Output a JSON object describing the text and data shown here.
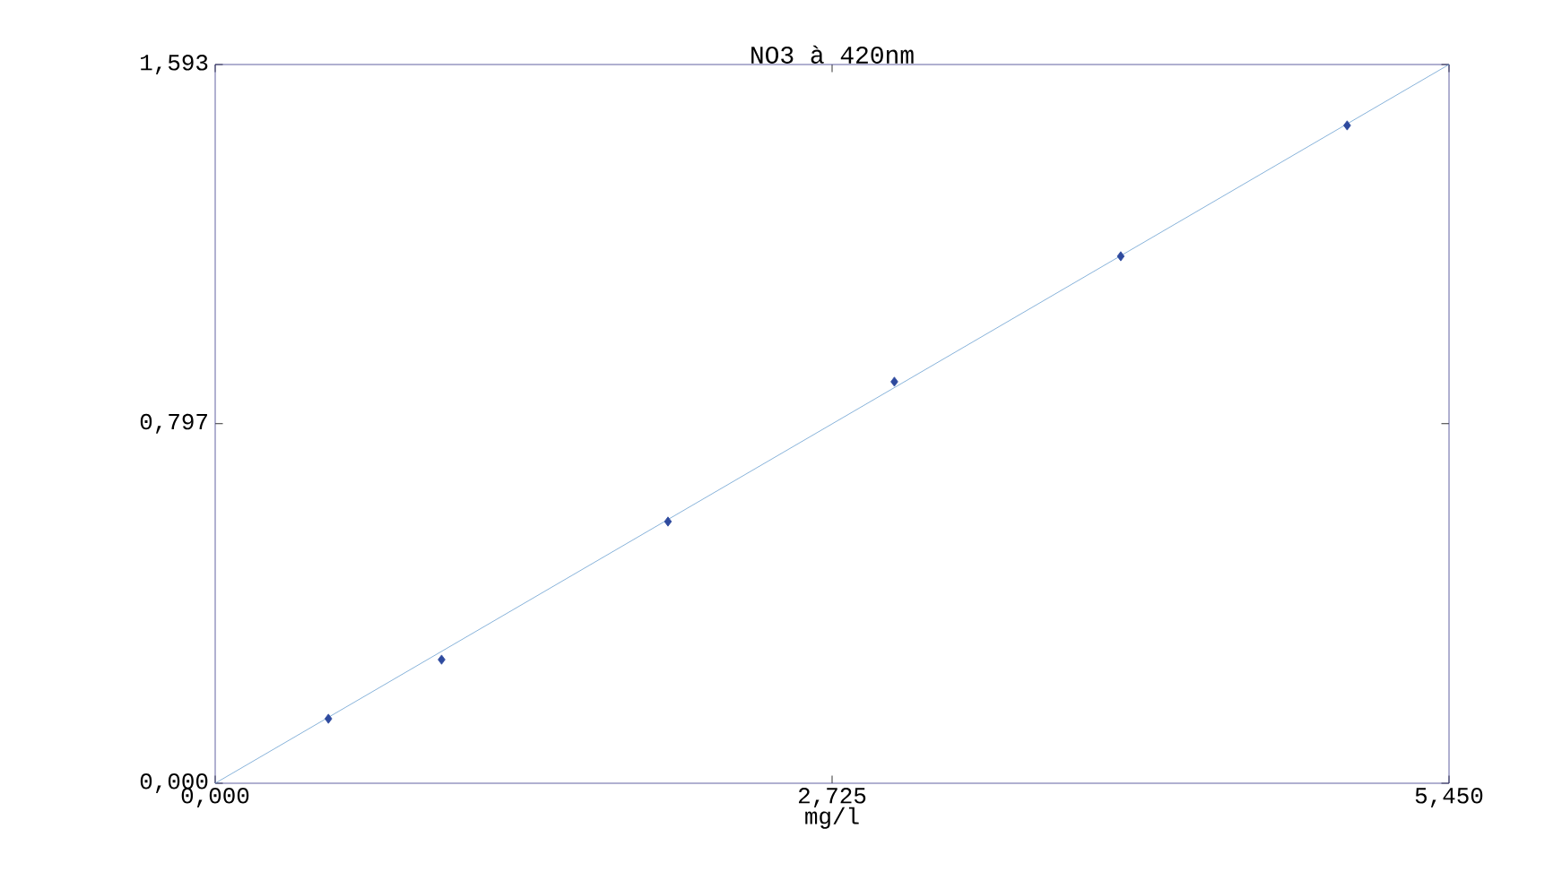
{
  "chart_data": {
    "type": "scatter",
    "title": "NO3 à 420nm",
    "xlabel": "mg/l",
    "xlim": [
      0,
      5.45
    ],
    "ylim": [
      0,
      1.593
    ],
    "xticks": [
      {
        "value": 0,
        "label": "0,000"
      },
      {
        "value": 2.725,
        "label": "2,725"
      },
      {
        "value": 5.45,
        "label": "5,450"
      }
    ],
    "yticks": [
      {
        "value": 0,
        "label": "0,000"
      },
      {
        "value": 0.797,
        "label": "0,797"
      },
      {
        "value": 1.593,
        "label": "1,593"
      }
    ],
    "series": [
      {
        "marker": "diamond",
        "color": "#2e4a9e",
        "x": [
          0.5,
          1,
          2,
          3,
          4,
          5
        ],
        "values": [
          0.143,
          0.274,
          0.58,
          0.89,
          1.168,
          1.458
        ]
      },
      {
        "type": "line",
        "marker": "none",
        "line_style": "solid",
        "color": "#6a9fd0",
        "x": [
          0,
          5.45
        ],
        "values": [
          0,
          1.593
        ]
      }
    ]
  }
}
